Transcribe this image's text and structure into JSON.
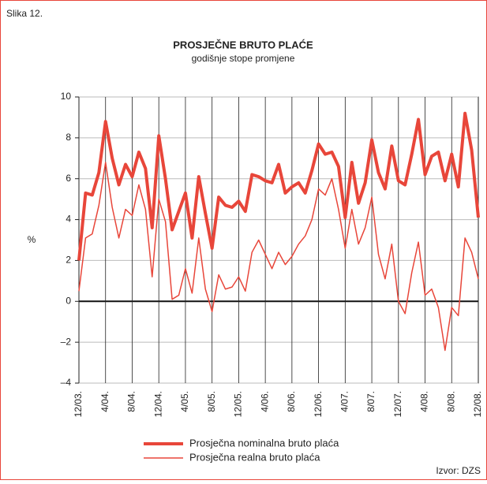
{
  "caption": "Slika 12.",
  "source": "Izvor: DZS",
  "chart_data": {
    "type": "line",
    "title": "PROSJEČNE BRUTO PLAĆE",
    "subtitle": "godišnje stope promjene",
    "y_label": "%",
    "categories": [
      "12/03.",
      null,
      null,
      null,
      "4/04.",
      null,
      null,
      null,
      "8/04.",
      null,
      null,
      null,
      "12/04.",
      null,
      null,
      null,
      "4/05.",
      null,
      null,
      null,
      "8/05.",
      null,
      null,
      null,
      "12/05.",
      null,
      null,
      null,
      "4/06.",
      null,
      null,
      null,
      "8/06.",
      null,
      null,
      null,
      "12/06.",
      null,
      null,
      null,
      "4/07.",
      null,
      null,
      null,
      "8/07.",
      null,
      null,
      null,
      "12/07.",
      null,
      null,
      null,
      "4/08.",
      null,
      null,
      null,
      "8/08.",
      null,
      null,
      null,
      "12/08."
    ],
    "series": [
      {
        "name": "Prosječna nominalna bruto plaća",
        "color": "#e8463a",
        "width": 4,
        "values": [
          2.0,
          5.3,
          5.2,
          6.3,
          8.8,
          7.0,
          5.7,
          6.7,
          6.1,
          7.3,
          6.5,
          3.6,
          8.1,
          6.0,
          3.5,
          4.4,
          5.3,
          3.1,
          6.1,
          4.3,
          2.6,
          5.1,
          4.7,
          4.6,
          4.9,
          4.4,
          6.2,
          6.1,
          5.9,
          5.8,
          6.7,
          5.3,
          5.6,
          5.8,
          5.3,
          6.4,
          7.7,
          7.2,
          7.3,
          6.6,
          4.1,
          6.8,
          4.8,
          5.8,
          7.9,
          6.3,
          5.5,
          7.6,
          5.9,
          5.7,
          7.2,
          8.9,
          6.2,
          7.1,
          7.3,
          5.9,
          7.2,
          5.6,
          9.2,
          7.4,
          4.1
        ]
      },
      {
        "name": "Prosječna realna bruto plaća",
        "color": "#e8463a",
        "width": 1.5,
        "values": [
          0.5,
          3.1,
          3.3,
          4.7,
          6.8,
          4.6,
          3.1,
          4.5,
          4.2,
          5.7,
          4.5,
          1.2,
          5.0,
          3.9,
          0.1,
          0.3,
          1.6,
          0.4,
          3.1,
          0.6,
          -0.5,
          1.3,
          0.6,
          0.7,
          1.2,
          0.5,
          2.4,
          3.0,
          2.3,
          1.6,
          2.4,
          1.8,
          2.2,
          2.8,
          3.2,
          4.0,
          5.5,
          5.2,
          6.0,
          4.5,
          2.6,
          4.5,
          2.8,
          3.6,
          5.1,
          2.3,
          1.1,
          2.8,
          0.0,
          -0.6,
          1.4,
          2.9,
          0.3,
          0.6,
          -0.3,
          -2.4,
          -0.3,
          -0.7,
          3.1,
          2.4,
          1.1
        ]
      }
    ],
    "ylim": [
      -4,
      10
    ],
    "yticks": [
      {
        "value": -4,
        "label": "–4"
      },
      {
        "value": -2,
        "label": "–2"
      },
      0,
      2,
      4,
      6,
      8,
      10
    ],
    "grid": true
  }
}
